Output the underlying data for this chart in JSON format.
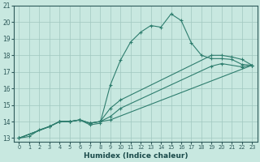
{
  "xlabel": "Humidex (Indice chaleur)",
  "bg_color": "#c8e8e0",
  "grid_color": "#a0c8c0",
  "line_color": "#2e7d6e",
  "xlim": [
    -0.5,
    23.5
  ],
  "ylim": [
    12.8,
    21.0
  ],
  "xticks": [
    0,
    1,
    2,
    3,
    4,
    5,
    6,
    7,
    8,
    9,
    10,
    11,
    12,
    13,
    14,
    15,
    16,
    17,
    18,
    19,
    20,
    21,
    22,
    23
  ],
  "yticks": [
    13,
    14,
    15,
    16,
    17,
    18,
    19,
    20,
    21
  ],
  "line1_x": [
    0,
    1,
    2,
    3,
    4,
    5,
    6,
    7,
    8,
    9,
    10,
    11,
    12,
    13,
    14,
    15,
    16,
    17,
    18,
    19,
    20,
    21,
    22,
    23
  ],
  "line1_y": [
    13.0,
    13.1,
    13.5,
    13.7,
    14.0,
    14.0,
    14.1,
    13.8,
    13.9,
    16.2,
    17.7,
    18.8,
    19.4,
    19.8,
    19.7,
    20.5,
    20.1,
    18.75,
    18.0,
    17.8,
    17.8,
    17.75,
    17.45,
    17.4
  ],
  "line2_x": [
    0,
    3,
    4,
    5,
    6,
    7,
    8,
    9,
    10,
    19,
    20,
    21,
    22,
    23
  ],
  "line2_y": [
    13.0,
    13.7,
    14.0,
    14.0,
    14.1,
    13.9,
    14.0,
    14.8,
    15.3,
    18.0,
    18.0,
    17.9,
    17.75,
    17.4
  ],
  "line3_x": [
    0,
    3,
    4,
    5,
    6,
    7,
    8,
    9,
    10,
    19,
    20,
    22,
    23
  ],
  "line3_y": [
    13.0,
    13.7,
    14.0,
    14.0,
    14.1,
    13.9,
    14.0,
    14.3,
    14.8,
    17.35,
    17.5,
    17.3,
    17.4
  ],
  "line4_x": [
    0,
    3,
    4,
    5,
    6,
    7,
    8,
    9,
    23
  ],
  "line4_y": [
    13.0,
    13.7,
    14.0,
    14.0,
    14.1,
    13.9,
    14.0,
    14.1,
    17.4
  ]
}
